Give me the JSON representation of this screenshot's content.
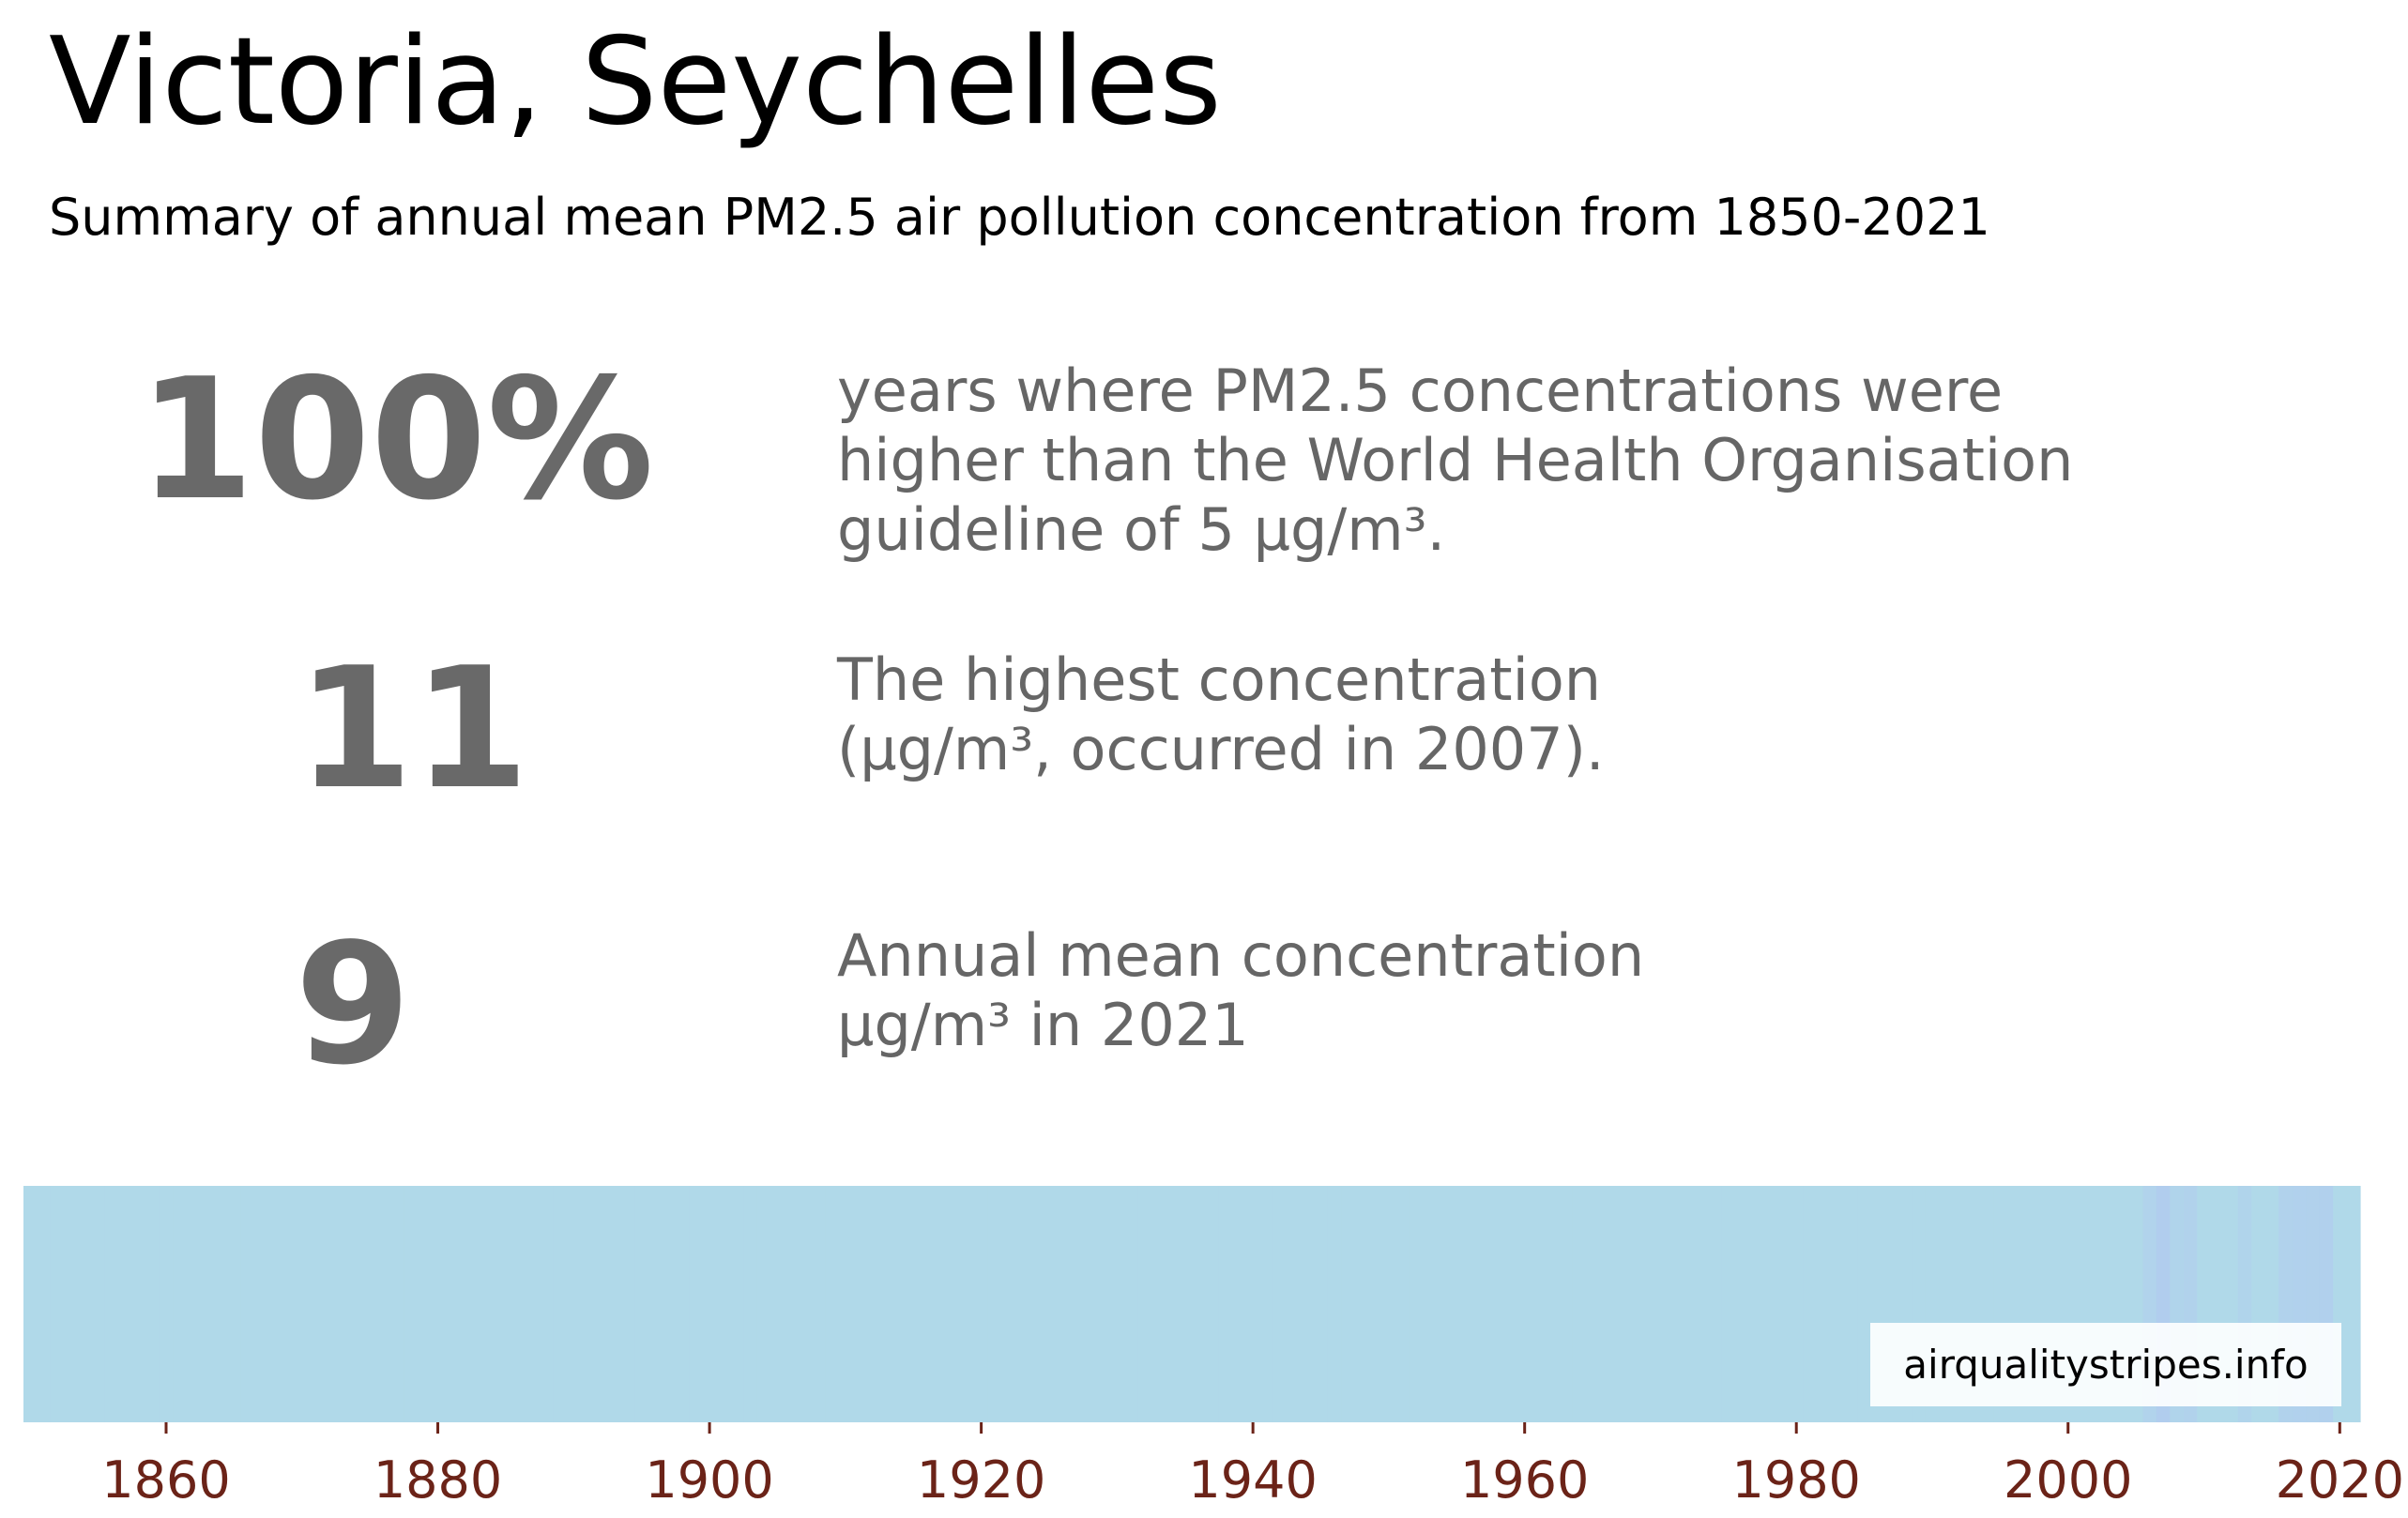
{
  "header": {
    "title": "Victoria, Seychelles",
    "subtitle": "Summary of annual mean PM2.5 air pollution concentration from 1850-2021"
  },
  "stats": [
    {
      "value": "100%",
      "description": "years where PM2.5 concentrations were\nhigher than the World Health Organisation\nguideline of 5 µg/m³."
    },
    {
      "value": "11",
      "description": "The highest concentration\n(µg/m³, occurred in 2007)."
    },
    {
      "value": "9",
      "description": "Annual mean concentration\nµg/m³ in 2021"
    }
  ],
  "credit": "airqualitystripes.info",
  "colors": {
    "text_grey": "#666666",
    "tick_label": "#6b2318",
    "stripe_base": "#b0d9e9",
    "stripe_high": "#b1cdee"
  },
  "chart_data": {
    "type": "heatmap",
    "title": "",
    "xlabel": "",
    "ylabel": "",
    "x_range": [
      1850,
      2021
    ],
    "x_ticks": [
      1860,
      1880,
      1900,
      1920,
      1940,
      1960,
      1980,
      2000,
      2020
    ],
    "tick_labels": [
      "1860",
      "1880",
      "1900",
      "1920",
      "1940",
      "1960",
      "1980",
      "2000",
      "2020"
    ],
    "series": [
      {
        "years": [
          1850,
          2005,
          2006,
          2007,
          2008,
          2009,
          2010,
          2011,
          2012,
          2013,
          2014,
          2015,
          2016,
          2017,
          2018,
          2019,
          2020,
          2021
        ],
        "values": [
          9,
          9,
          10,
          11,
          9.8,
          10.2,
          9,
          9,
          9,
          9.8,
          9,
          9,
          10.2,
          10.4,
          10.3,
          10.5,
          9,
          9
        ]
      }
    ],
    "grid": false,
    "legend": "none"
  }
}
